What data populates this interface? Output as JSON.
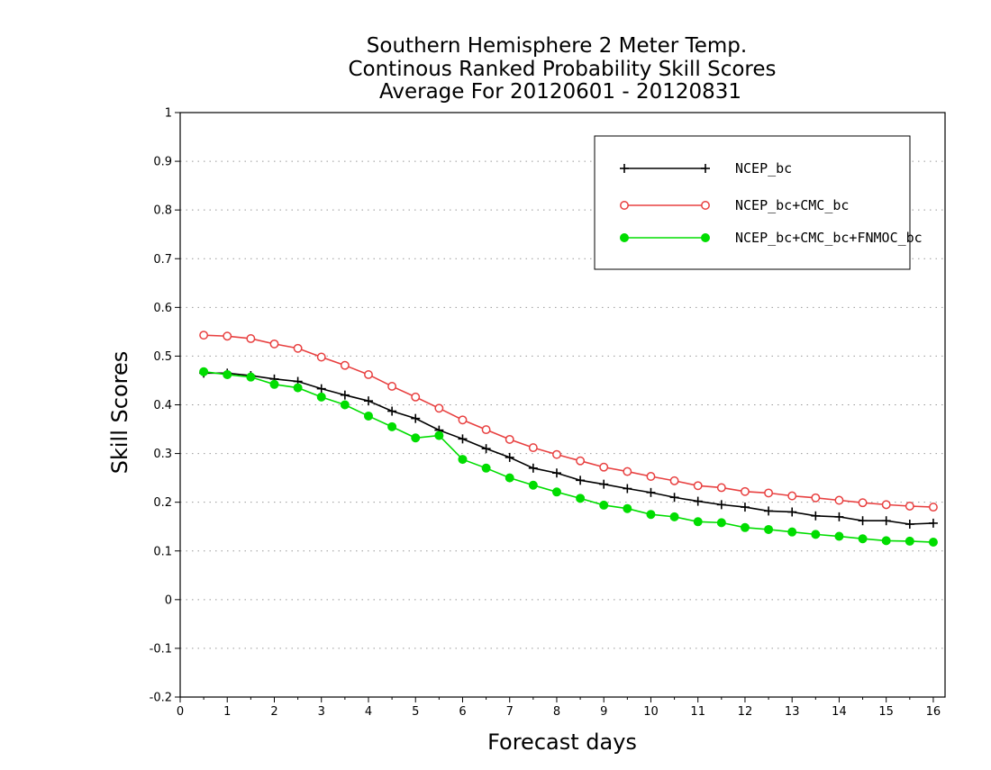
{
  "chart_data": {
    "type": "line",
    "title": [
      "Southern Hemisphere 2 Meter Temp.",
      "Continous Ranked Probability Skill Scores",
      "Average For 20120601 - 20120831"
    ],
    "xlabel": "Forecast days",
    "ylabel": "Skill Scores",
    "xlim": [
      0,
      16.25
    ],
    "ylim": [
      -0.2,
      1
    ],
    "xticks": [
      0,
      1,
      2,
      3,
      4,
      5,
      6,
      7,
      8,
      9,
      10,
      11,
      12,
      13,
      14,
      15,
      16
    ],
    "yticks": [
      -0.2,
      -0.1,
      0,
      0.1,
      0.2,
      0.3,
      0.4,
      0.5,
      0.6,
      0.7,
      0.8,
      0.9,
      1
    ],
    "xtick_labels": [
      "0",
      "1",
      "2",
      "3",
      "4",
      "5",
      "6",
      "7",
      "8",
      "9",
      "10",
      "11",
      "12",
      "13",
      "14",
      "15",
      "16"
    ],
    "ytick_labels": [
      "-0.2",
      "-0.1",
      "0",
      "0.1",
      "0.2",
      "0.3",
      "0.4",
      "0.5",
      "0.6",
      "0.7",
      "0.8",
      "0.9",
      "1"
    ],
    "grid": "horizontal-dotted",
    "legend_position": "top-right",
    "x": [
      0.5,
      1,
      1.5,
      2,
      2.5,
      3,
      3.5,
      4,
      4.5,
      5,
      5.5,
      6,
      6.5,
      7,
      7.5,
      8,
      8.5,
      9,
      9.5,
      10,
      10.5,
      11,
      11.5,
      12,
      12.5,
      13,
      13.5,
      14,
      14.5,
      15,
      15.5,
      16
    ],
    "series": [
      {
        "name": "NCEP_bc",
        "color": "#000000",
        "marker": "plus",
        "values": [
          0.465,
          0.465,
          0.46,
          0.453,
          0.448,
          0.433,
          0.42,
          0.408,
          0.387,
          0.372,
          0.348,
          0.33,
          0.31,
          0.292,
          0.27,
          0.26,
          0.245,
          0.237,
          0.228,
          0.22,
          0.21,
          0.202,
          0.195,
          0.19,
          0.182,
          0.18,
          0.172,
          0.17,
          0.162,
          0.162,
          0.155,
          0.157
        ]
      },
      {
        "name": "NCEP_bc+CMC_bc",
        "color": "#e84040",
        "marker": "open-circle",
        "values": [
          0.543,
          0.541,
          0.536,
          0.525,
          0.516,
          0.498,
          0.481,
          0.462,
          0.438,
          0.416,
          0.393,
          0.369,
          0.349,
          0.329,
          0.312,
          0.298,
          0.285,
          0.272,
          0.263,
          0.253,
          0.244,
          0.234,
          0.23,
          0.222,
          0.219,
          0.213,
          0.209,
          0.204,
          0.199,
          0.195,
          0.192,
          0.19
        ]
      },
      {
        "name": "NCEP_bc+CMC_bc+FNMOC_bc",
        "color": "#00dd00",
        "marker": "filled-circle",
        "values": [
          0.468,
          0.462,
          0.457,
          0.442,
          0.435,
          0.416,
          0.4,
          0.377,
          0.355,
          0.332,
          0.337,
          0.288,
          0.27,
          0.25,
          0.235,
          0.221,
          0.208,
          0.194,
          0.187,
          0.175,
          0.17,
          0.16,
          0.158,
          0.148,
          0.144,
          0.139,
          0.134,
          0.13,
          0.125,
          0.121,
          0.12,
          0.118
        ]
      }
    ]
  }
}
